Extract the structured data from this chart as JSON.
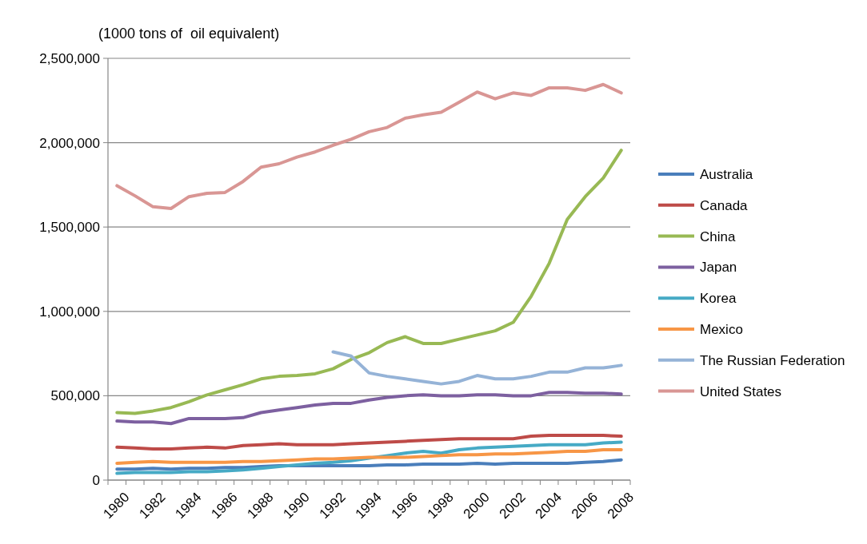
{
  "chart_data": {
    "type": "line",
    "ylabel": "(1000 tons of  oil equivalent)",
    "categories": [
      "1980",
      null,
      "1982",
      null,
      "1984",
      null,
      "1986",
      null,
      "1988",
      null,
      "1990",
      null,
      "1992",
      null,
      "1994",
      null,
      "1996",
      null,
      "1998",
      null,
      "2000",
      null,
      "2002",
      null,
      "2004",
      null,
      "2006",
      null,
      "2008"
    ],
    "ylim": [
      0,
      2500000
    ],
    "yticks": [
      {
        "value": 0,
        "label": "0"
      },
      {
        "value": 500000,
        "label": "500,000"
      },
      {
        "value": 1000000,
        "label": "1,000,000"
      },
      {
        "value": 1500000,
        "label": "1,500,000"
      },
      {
        "value": 2000000,
        "label": "2,000,000"
      },
      {
        "value": 2500000,
        "label": "2,500,000"
      }
    ],
    "grid": "y",
    "legend": "right",
    "marker": "none",
    "series": [
      {
        "name": "Australia",
        "color": "#4a7ebb",
        "values": [
          65000,
          65000,
          70000,
          65000,
          70000,
          70000,
          75000,
          75000,
          80000,
          85000,
          85000,
          85000,
          85000,
          85000,
          85000,
          90000,
          90000,
          95000,
          95000,
          95000,
          100000,
          95000,
          100000,
          100000,
          100000,
          100000,
          105000,
          110000,
          120000
        ]
      },
      {
        "name": "Canada",
        "color": "#be4b48",
        "values": [
          195000,
          190000,
          185000,
          185000,
          190000,
          195000,
          190000,
          205000,
          210000,
          215000,
          210000,
          210000,
          210000,
          215000,
          220000,
          225000,
          230000,
          235000,
          240000,
          245000,
          245000,
          245000,
          245000,
          260000,
          265000,
          265000,
          265000,
          265000,
          260000
        ]
      },
      {
        "name": "China",
        "color": "#98b954",
        "values": [
          400000,
          395000,
          410000,
          430000,
          465000,
          505000,
          535000,
          565000,
          600000,
          615000,
          620000,
          630000,
          660000,
          715000,
          755000,
          815000,
          850000,
          810000,
          810000,
          835000,
          860000,
          885000,
          935000,
          1090000,
          1285000,
          1545000,
          1680000,
          1790000,
          1955000
        ]
      },
      {
        "name": "Japan",
        "color": "#7d60a0",
        "values": [
          350000,
          345000,
          345000,
          335000,
          365000,
          365000,
          365000,
          370000,
          400000,
          415000,
          430000,
          445000,
          455000,
          455000,
          475000,
          490000,
          500000,
          505000,
          500000,
          500000,
          505000,
          505000,
          500000,
          500000,
          520000,
          520000,
          515000,
          515000,
          510000
        ]
      },
      {
        "name": "Korea",
        "color": "#46aac5",
        "values": [
          40000,
          45000,
          45000,
          45000,
          50000,
          50000,
          55000,
          60000,
          70000,
          80000,
          90000,
          100000,
          105000,
          115000,
          130000,
          145000,
          160000,
          170000,
          160000,
          180000,
          190000,
          195000,
          200000,
          205000,
          210000,
          210000,
          210000,
          220000,
          225000
        ]
      },
      {
        "name": "Mexico",
        "color": "#f79646",
        "values": [
          100000,
          105000,
          110000,
          105000,
          105000,
          105000,
          105000,
          110000,
          110000,
          115000,
          120000,
          125000,
          125000,
          130000,
          135000,
          135000,
          135000,
          140000,
          145000,
          150000,
          150000,
          155000,
          155000,
          160000,
          165000,
          170000,
          170000,
          180000,
          180000
        ]
      },
      {
        "name": "The Russian Federation",
        "color": "#95b3d7",
        "values": [
          null,
          null,
          null,
          null,
          null,
          null,
          null,
          null,
          null,
          null,
          null,
          null,
          760000,
          735000,
          635000,
          615000,
          600000,
          585000,
          570000,
          585000,
          620000,
          600000,
          600000,
          615000,
          640000,
          640000,
          665000,
          665000,
          680000
        ]
      },
      {
        "name": "United States",
        "color": "#d99694",
        "values": [
          1745000,
          1685000,
          1620000,
          1610000,
          1680000,
          1700000,
          1705000,
          1770000,
          1855000,
          1875000,
          1915000,
          1945000,
          1985000,
          2020000,
          2065000,
          2090000,
          2145000,
          2165000,
          2180000,
          2240000,
          2300000,
          2260000,
          2295000,
          2280000,
          2325000,
          2325000,
          2310000,
          2345000,
          2295000
        ]
      }
    ]
  }
}
